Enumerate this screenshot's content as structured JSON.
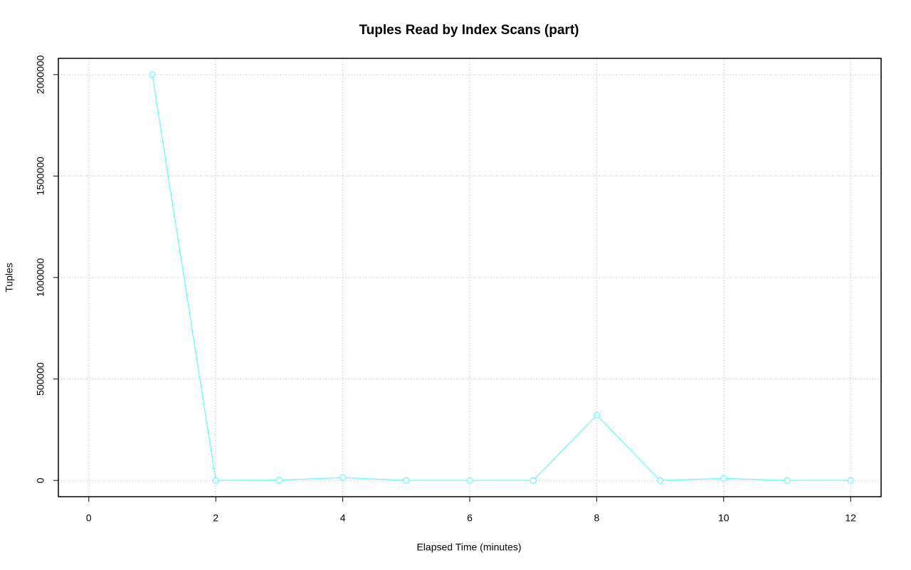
{
  "chart_data": {
    "type": "line",
    "title": "Tuples Read by Index Scans (part)",
    "xlabel": "Elapsed Time (minutes)",
    "ylabel": "Tuples",
    "x": [
      1,
      2,
      3,
      4,
      5,
      6,
      7,
      8,
      9,
      10,
      11,
      12
    ],
    "series": [
      {
        "name": "part",
        "color": "#66ffff",
        "values": [
          2000000,
          0,
          2000,
          14000,
          0,
          0,
          0,
          322000,
          0,
          10000,
          0,
          0
        ]
      }
    ],
    "xlim": [
      -0.48,
      12.48
    ],
    "xticks": [
      0,
      2,
      4,
      6,
      8,
      10,
      12
    ],
    "ylim": [
      -80000,
      2080000
    ],
    "yticks": [
      0,
      500000,
      1000000,
      1500000,
      2000000
    ],
    "grid": true
  }
}
